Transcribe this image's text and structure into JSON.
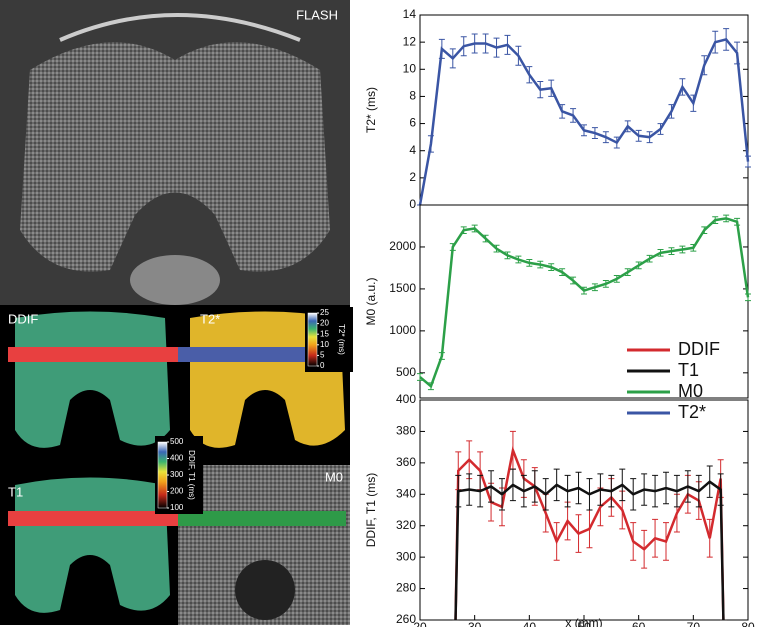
{
  "images": [
    {
      "label": "FLASH"
    },
    {
      "label": "DDIF"
    },
    {
      "label": "T2*"
    },
    {
      "label": "T1"
    },
    {
      "label": "M0"
    }
  ],
  "colorbars": [
    {
      "label": "T2* (ms)",
      "lim": [
        0,
        25
      ],
      "ticks": [
        25,
        20,
        15,
        10,
        5,
        0
      ]
    },
    {
      "label": "DDIF, T1 (ms)",
      "lim": [
        100,
        500
      ],
      "ticks": [
        500,
        400,
        300,
        200,
        100
      ]
    }
  ],
  "chart_data": [
    {
      "type": "line",
      "ylabel": "T2* (ms)",
      "xlim": [
        20,
        80
      ],
      "ylim": [
        0,
        14
      ],
      "yticks": [
        0,
        2,
        4,
        6,
        8,
        10,
        12,
        14
      ],
      "x": [
        20,
        22,
        24,
        26,
        28,
        30,
        32,
        34,
        36,
        38,
        40,
        42,
        44,
        46,
        48,
        50,
        52,
        54,
        56,
        58,
        60,
        62,
        64,
        66,
        68,
        70,
        72,
        74,
        76,
        78,
        80
      ],
      "series": [
        {
          "name": "T2*",
          "color": "#3a55a4",
          "values": [
            0,
            4.5,
            11.5,
            10.8,
            11.7,
            11.9,
            11.9,
            11.6,
            11.8,
            11,
            9.6,
            8.5,
            8.6,
            6.9,
            6.6,
            5.5,
            5.3,
            5,
            4.6,
            5.8,
            5.1,
            5,
            5.6,
            6.9,
            8.7,
            7.5,
            10.3,
            12,
            12.2,
            11.2,
            3.2
          ],
          "errors": [
            0,
            0.6,
            0.7,
            0.7,
            0.7,
            0.7,
            0.7,
            0.7,
            0.7,
            0.7,
            0.6,
            0.6,
            0.6,
            0.5,
            0.5,
            0.4,
            0.4,
            0.4,
            0.4,
            0.4,
            0.4,
            0.4,
            0.4,
            0.5,
            0.6,
            0.6,
            0.7,
            0.8,
            0.8,
            0.8,
            0.4
          ]
        }
      ]
    },
    {
      "type": "line",
      "ylabel": "M0 (a.u.)",
      "xlim": [
        20,
        80
      ],
      "ylim": [
        200,
        2500
      ],
      "yticks": [
        500,
        1000,
        1500,
        2000
      ],
      "x": [
        20,
        22,
        24,
        26,
        28,
        30,
        32,
        34,
        36,
        38,
        40,
        42,
        44,
        46,
        48,
        50,
        52,
        54,
        56,
        58,
        60,
        62,
        64,
        66,
        68,
        70,
        72,
        74,
        76,
        78,
        80
      ],
      "series": [
        {
          "name": "M0",
          "color": "#2ca048",
          "values": [
            450,
            340,
            700,
            2000,
            2200,
            2220,
            2100,
            1980,
            1900,
            1850,
            1810,
            1790,
            1760,
            1700,
            1600,
            1480,
            1520,
            1560,
            1620,
            1700,
            1780,
            1860,
            1930,
            1950,
            1970,
            1990,
            2200,
            2320,
            2340,
            2300,
            1400
          ],
          "errors": [
            40,
            40,
            40,
            40,
            40,
            40,
            40,
            40,
            40,
            40,
            40,
            40,
            40,
            40,
            40,
            40,
            40,
            40,
            40,
            40,
            40,
            40,
            40,
            40,
            40,
            40,
            40,
            40,
            40,
            40,
            40
          ]
        }
      ]
    },
    {
      "type": "line",
      "ylabel": "DDIF, T1 (ms)",
      "xlabel": "x (mm)",
      "xlim": [
        20,
        80
      ],
      "ylim": [
        260,
        400
      ],
      "xticks": [
        20,
        30,
        40,
        50,
        60,
        70,
        80
      ],
      "yticks": [
        260,
        280,
        300,
        320,
        340,
        360,
        380,
        400
      ],
      "x": [
        26.5,
        27,
        29,
        31,
        33,
        35,
        37,
        39,
        41,
        43,
        45,
        47,
        49,
        51,
        53,
        55,
        57,
        59,
        61,
        63,
        65,
        67,
        69,
        71,
        73,
        75,
        75.5
      ],
      "series": [
        {
          "name": "DDIF",
          "color": "#d32a2e",
          "values": [
            260,
            355,
            362,
            355,
            335,
            332,
            368,
            350,
            345,
            328,
            310,
            323,
            315,
            318,
            332,
            338,
            330,
            310,
            305,
            312,
            310,
            328,
            340,
            336,
            312,
            350,
            260
          ],
          "errors": [
            0,
            12,
            12,
            12,
            12,
            12,
            12,
            12,
            12,
            12,
            12,
            12,
            12,
            12,
            12,
            12,
            12,
            12,
            12,
            12,
            12,
            12,
            12,
            12,
            12,
            12,
            0
          ]
        },
        {
          "name": "T1",
          "color": "#111111",
          "values": [
            260,
            342,
            343,
            342,
            345,
            340,
            346,
            342,
            345,
            340,
            346,
            342,
            344,
            340,
            343,
            342,
            346,
            340,
            343,
            342,
            344,
            342,
            345,
            342,
            348,
            343,
            260
          ],
          "errors": [
            0,
            10,
            10,
            10,
            10,
            10,
            10,
            10,
            10,
            10,
            10,
            10,
            10,
            10,
            10,
            10,
            10,
            10,
            10,
            10,
            10,
            10,
            10,
            10,
            10,
            10,
            0
          ]
        }
      ]
    }
  ]
}
